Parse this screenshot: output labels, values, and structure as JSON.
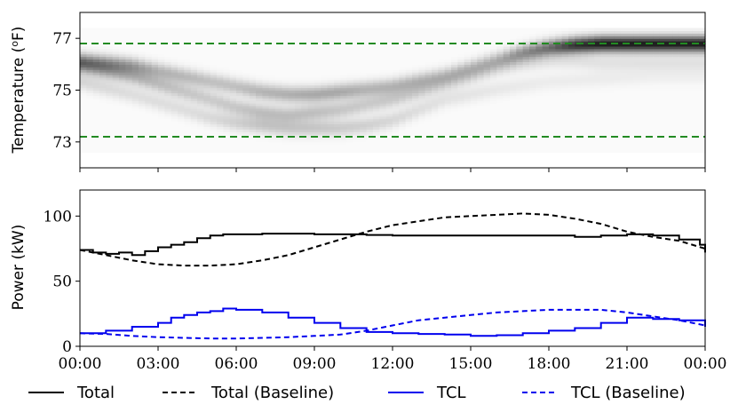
{
  "chart_data": [
    {
      "type": "heatmap",
      "ylabel": "Temperature (°F)",
      "ylabel_prefix": "Temperature (",
      "ylabel_sup": "o",
      "ylabel_suffix": "F)",
      "ylim": [
        72.0,
        78.0
      ],
      "y_ticks": [
        73,
        75,
        77
      ],
      "xlim_hours": [
        0,
        24
      ],
      "grid": false,
      "colormap": "greys",
      "bounds": [
        {
          "value": 76.8,
          "style": "dashed",
          "color": "#228b22"
        },
        {
          "value": 73.2,
          "style": "dashed",
          "color": "#228b22"
        }
      ],
      "density_ridges": [
        {
          "t": [
            0,
            1,
            2,
            3,
            4,
            5,
            6,
            7,
            8,
            9,
            10,
            11,
            12,
            13,
            14,
            15,
            16,
            17,
            18,
            19,
            20,
            21,
            22,
            23,
            24
          ],
          "temp": [
            76.1,
            76.0,
            75.9,
            75.7,
            75.5,
            75.3,
            75.1,
            74.9,
            74.8,
            74.8,
            74.9,
            75.0,
            75.1,
            75.3,
            75.5,
            75.8,
            76.1,
            76.4,
            76.6,
            76.7,
            76.75,
            76.75,
            76.75,
            76.75,
            76.75
          ],
          "intensity": [
            0.45,
            0.45,
            0.4,
            0.3,
            0.28,
            0.25,
            0.25,
            0.3,
            0.32,
            0.35,
            0.35,
            0.3,
            0.3,
            0.3,
            0.28,
            0.28,
            0.3,
            0.45,
            0.6,
            0.85,
            0.95,
            0.95,
            0.95,
            0.95,
            0.95
          ]
        },
        {
          "t": [
            0,
            1,
            2,
            3,
            4,
            5,
            6,
            7,
            8,
            9,
            10,
            11,
            12,
            13,
            14,
            15,
            16,
            17,
            18,
            19,
            20,
            21,
            22,
            23,
            24
          ],
          "temp": [
            75.9,
            75.7,
            75.5,
            75.2,
            74.9,
            74.6,
            74.3,
            74.1,
            74.0,
            74.1,
            74.2,
            74.4,
            74.6,
            74.9,
            75.2,
            75.5,
            75.8,
            76.0,
            76.1,
            76.1,
            76.0,
            76.0,
            76.0,
            76.0,
            76.0
          ],
          "intensity": [
            0.3,
            0.3,
            0.28,
            0.25,
            0.22,
            0.2,
            0.22,
            0.25,
            0.25,
            0.25,
            0.22,
            0.2,
            0.2,
            0.18,
            0.15,
            0.15,
            0.12,
            0.12,
            0.1,
            0.1,
            0.1,
            0.1,
            0.1,
            0.1,
            0.1
          ]
        },
        {
          "t": [
            0,
            2,
            4,
            5,
            6,
            7,
            8,
            9,
            10,
            11,
            12,
            13,
            14,
            16,
            18,
            20,
            22,
            24
          ],
          "temp": [
            75.3,
            74.8,
            74.2,
            73.9,
            73.7,
            73.6,
            73.5,
            73.5,
            73.5,
            73.6,
            73.8,
            74.2,
            74.6,
            75.0,
            75.3,
            75.4,
            75.5,
            75.5
          ],
          "intensity": [
            0.15,
            0.12,
            0.12,
            0.14,
            0.18,
            0.22,
            0.22,
            0.22,
            0.2,
            0.18,
            0.15,
            0.12,
            0.1,
            0.08,
            0.06,
            0.06,
            0.05,
            0.05
          ]
        }
      ]
    },
    {
      "type": "line",
      "ylabel": "Power (kW)",
      "ylim": [
        0,
        120
      ],
      "y_ticks": [
        0,
        50,
        100
      ],
      "xlim_hours": [
        0,
        24
      ],
      "x_ticks": [
        "00:00",
        "03:00",
        "06:00",
        "09:00",
        "12:00",
        "15:00",
        "18:00",
        "21:00",
        "00:00"
      ],
      "grid": false,
      "legend_position": "bottom",
      "series": [
        {
          "name": "Total",
          "color": "#000000",
          "style": "solid",
          "step": true,
          "x": [
            0,
            0.5,
            1,
            1.5,
            2,
            2.5,
            3,
            3.5,
            4,
            4.5,
            5,
            5.5,
            6,
            7,
            8,
            9,
            10,
            11,
            12,
            13,
            14,
            15,
            16,
            17,
            18,
            19,
            20,
            21,
            22,
            23,
            23.8,
            24
          ],
          "y": [
            74,
            72,
            71,
            72,
            70,
            73,
            76,
            78,
            80,
            83,
            85,
            86,
            86,
            86.5,
            86.5,
            86,
            86,
            85.5,
            85,
            85,
            85,
            85,
            85,
            85,
            85,
            84,
            85,
            86,
            85,
            82,
            78,
            72
          ]
        },
        {
          "name": "Total (Baseline)",
          "color": "#000000",
          "style": "dashed",
          "x": [
            0,
            1,
            2,
            3,
            4,
            5,
            6,
            7,
            8,
            9,
            10,
            11,
            12,
            13,
            14,
            15,
            16,
            17,
            18,
            19,
            20,
            21,
            22,
            23,
            24
          ],
          "y": [
            74,
            70,
            66,
            63,
            62,
            62,
            63,
            66,
            70,
            76,
            82,
            88,
            93,
            96,
            99,
            100,
            101,
            102,
            101,
            98,
            94,
            88,
            84,
            81,
            75
          ]
        },
        {
          "name": "TCL",
          "color": "#0000ee",
          "style": "solid",
          "step": true,
          "x": [
            0,
            1,
            2,
            3,
            3.5,
            4,
            4.5,
            5,
            5.5,
            6,
            7,
            8,
            9,
            10,
            11,
            12,
            13,
            14,
            15,
            16,
            17,
            18,
            19,
            20,
            21,
            22,
            23,
            23.8,
            24
          ],
          "y": [
            10,
            12,
            15,
            18,
            22,
            24,
            26,
            27,
            29,
            28,
            26,
            22,
            18,
            14,
            11,
            10,
            9.5,
            9,
            8,
            8.5,
            10,
            12,
            14,
            18,
            22,
            21,
            20,
            20,
            15
          ]
        },
        {
          "name": "TCL (Baseline)",
          "color": "#0000ee",
          "style": "dashed",
          "x": [
            0,
            1,
            2,
            3,
            4,
            5,
            6,
            7,
            8,
            9,
            10,
            11,
            12,
            13,
            14,
            15,
            16,
            17,
            18,
            19,
            20,
            21,
            22,
            23,
            24
          ],
          "y": [
            10,
            9.5,
            8,
            7,
            6.5,
            6,
            6,
            6.5,
            7,
            8,
            9,
            12,
            16,
            20,
            22,
            24,
            26,
            27,
            28,
            28,
            28,
            26,
            23,
            20,
            16
          ]
        }
      ]
    }
  ],
  "legend": [
    {
      "label": "Total",
      "color": "#000000",
      "style": "solid"
    },
    {
      "label": "Total (Baseline)",
      "color": "#000000",
      "style": "dashed"
    },
    {
      "label": "TCL",
      "color": "#0000ee",
      "style": "solid"
    },
    {
      "label": "TCL (Baseline)",
      "color": "#0000ee",
      "style": "dashed"
    }
  ]
}
